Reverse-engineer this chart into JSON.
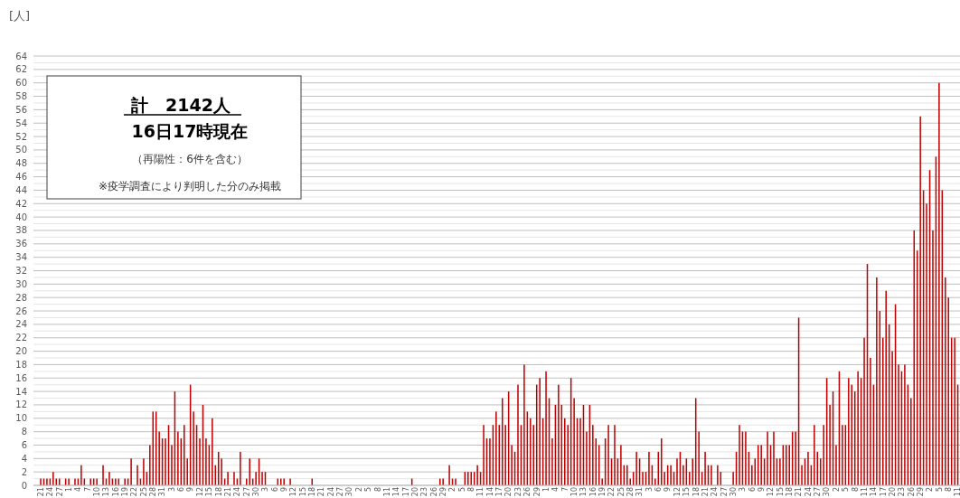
{
  "chart_data": {
    "type": "bar",
    "ylabel": "[人]",
    "categories": [
      "21",
      null,
      null,
      "24",
      null,
      null,
      "27",
      null,
      null,
      "1",
      null,
      null,
      "4",
      null,
      null,
      "7",
      null,
      null,
      "10",
      null,
      null,
      "13",
      null,
      null,
      "16",
      null,
      null,
      "19",
      null,
      null,
      "22",
      null,
      null,
      "25",
      null,
      null,
      "28",
      null,
      null,
      "31",
      null,
      null,
      "3",
      null,
      null,
      "6",
      null,
      null,
      "9",
      null,
      null,
      "12",
      null,
      null,
      "15",
      null,
      null,
      "18",
      null,
      null,
      "21",
      null,
      null,
      "24",
      null,
      null,
      "27",
      null,
      null,
      "30",
      null,
      null,
      "3",
      null,
      null,
      "6",
      null,
      null,
      "9",
      null,
      null,
      "12",
      null,
      null,
      "15",
      null,
      null,
      "18",
      null,
      null,
      "21",
      null,
      null,
      "24",
      null,
      null,
      "27",
      null,
      null,
      "30",
      null,
      null,
      "2",
      null,
      null,
      "5",
      null,
      null,
      "8",
      null,
      null,
      "11",
      null,
      null,
      "14",
      null,
      null,
      "17",
      null,
      null,
      "20",
      null,
      null,
      "23",
      null,
      null,
      "26",
      null,
      null,
      "29",
      null,
      null,
      "2",
      null,
      null,
      "5",
      null,
      null,
      "8",
      null,
      null,
      "11",
      null,
      null,
      "14",
      null,
      null,
      "17",
      null,
      null,
      "20",
      null,
      null,
      "23",
      null,
      null,
      "26",
      null,
      null,
      "29",
      null,
      null,
      "1",
      null,
      null,
      "4",
      null,
      null,
      "7",
      null,
      null,
      "10",
      null,
      null,
      "13",
      null,
      null,
      "16",
      null,
      null,
      "19",
      null,
      null,
      "22",
      null,
      null,
      "25",
      null,
      null,
      "28",
      null,
      null,
      "31",
      null,
      null,
      "3",
      null,
      null,
      "6",
      null,
      null,
      "9",
      null,
      null,
      "12",
      null,
      null,
      "15",
      null,
      null,
      "18",
      null,
      null,
      "21",
      null,
      null,
      "24",
      null,
      null,
      "27",
      null,
      null,
      "30",
      null,
      null,
      "3",
      null,
      null,
      "6",
      null,
      null,
      "9",
      null,
      null,
      "12",
      null,
      null,
      "15",
      null,
      null,
      "18",
      null,
      null,
      "21",
      null,
      null,
      "24",
      null,
      null,
      "27",
      null,
      null,
      "30",
      null,
      null,
      "2",
      null,
      null,
      "5",
      null,
      null,
      "8",
      null,
      null,
      "11",
      null,
      null,
      "14",
      null,
      null,
      "17",
      null,
      null,
      "20",
      null,
      null,
      "23",
      null,
      null,
      "26",
      null,
      null,
      "29",
      null,
      null,
      "2",
      null,
      null,
      "5",
      null,
      null,
      "8",
      null,
      null,
      "11"
    ],
    "values": [
      1,
      1,
      1,
      1,
      2,
      1,
      1,
      0,
      1,
      1,
      0,
      1,
      1,
      3,
      1,
      0,
      1,
      1,
      1,
      0,
      3,
      1,
      2,
      1,
      1,
      1,
      0,
      1,
      1,
      4,
      0,
      3,
      1,
      4,
      2,
      6,
      11,
      11,
      8,
      7,
      7,
      9,
      6,
      14,
      8,
      7,
      9,
      4,
      15,
      11,
      9,
      7,
      12,
      7,
      6,
      10,
      3,
      5,
      4,
      1,
      2,
      0,
      2,
      1,
      5,
      0,
      1,
      4,
      1,
      2,
      4,
      2,
      2,
      0,
      0,
      0,
      1,
      1,
      1,
      0,
      1,
      0,
      0,
      0,
      0,
      0,
      0,
      1,
      0,
      0,
      0,
      0,
      0,
      0,
      0,
      0,
      0,
      0,
      0,
      0,
      0,
      0,
      0,
      0,
      0,
      0,
      0,
      0,
      0,
      0,
      0,
      0,
      0,
      0,
      0,
      0,
      0,
      0,
      0,
      1,
      0,
      0,
      0,
      0,
      0,
      0,
      0,
      0,
      1,
      1,
      0,
      3,
      1,
      1,
      0,
      0,
      2,
      2,
      2,
      2,
      3,
      2,
      9,
      7,
      7,
      9,
      11,
      9,
      13,
      9,
      14,
      6,
      5,
      15,
      9,
      18,
      11,
      10,
      9,
      15,
      16,
      10,
      17,
      13,
      7,
      12,
      15,
      12,
      10,
      9,
      16,
      13,
      10,
      10,
      12,
      8,
      12,
      9,
      7,
      6,
      1,
      7,
      9,
      4,
      9,
      4,
      6,
      3,
      3,
      1,
      2,
      5,
      4,
      2,
      2,
      5,
      3,
      1,
      5,
      7,
      2,
      3,
      3,
      2,
      4,
      5,
      3,
      4,
      2,
      4,
      13,
      8,
      2,
      5,
      3,
      3,
      0,
      3,
      2,
      0,
      0,
      0,
      2,
      5,
      9,
      8,
      8,
      5,
      3,
      4,
      6,
      6,
      4,
      8,
      6,
      8,
      4,
      4,
      6,
      6,
      6,
      8,
      8,
      25,
      3,
      4,
      5,
      3,
      9,
      5,
      4,
      9,
      16,
      12,
      14,
      6,
      17,
      9,
      9,
      16,
      15,
      14,
      17,
      16,
      22,
      33,
      19,
      15,
      31,
      26,
      22,
      29,
      24,
      20,
      27,
      18,
      17,
      18,
      15,
      13,
      38,
      35,
      55,
      44,
      42,
      47,
      38,
      49,
      60,
      44,
      31,
      28,
      22,
      22,
      15
    ],
    "color": "#c00000",
    "ylim": [
      0,
      64
    ],
    "yticks": [
      0,
      {
        "value": 1,
        "label": null
      },
      2,
      {
        "value": 3,
        "label": null
      },
      4,
      {
        "value": 5,
        "label": null
      },
      6,
      {
        "value": 7,
        "label": null
      },
      8,
      {
        "value": 9,
        "label": null
      },
      10,
      {
        "value": 11,
        "label": null
      },
      12,
      {
        "value": 13,
        "label": null
      },
      14,
      {
        "value": 15,
        "label": null
      },
      16,
      {
        "value": 17,
        "label": null
      },
      18,
      {
        "value": 19,
        "label": null
      },
      20,
      {
        "value": 21,
        "label": null
      },
      22,
      {
        "value": 23,
        "label": null
      },
      24,
      {
        "value": 25,
        "label": null
      },
      26,
      {
        "value": 27,
        "label": null
      },
      28,
      {
        "value": 29,
        "label": null
      },
      30,
      {
        "value": 31,
        "label": null
      },
      32,
      {
        "value": 33,
        "label": null
      },
      34,
      {
        "value": 35,
        "label": null
      },
      36,
      {
        "value": 37,
        "label": null
      },
      38,
      {
        "value": 39,
        "label": null
      },
      40,
      {
        "value": 41,
        "label": null
      },
      42,
      {
        "value": 43,
        "label": null
      },
      44,
      {
        "value": 45,
        "label": null
      },
      46,
      {
        "value": 47,
        "label": null
      },
      48,
      {
        "value": 49,
        "label": null
      },
      50,
      {
        "value": 51,
        "label": null
      },
      52,
      {
        "value": 53,
        "label": null
      },
      54,
      {
        "value": 55,
        "label": null
      },
      56,
      {
        "value": 57,
        "label": null
      },
      58,
      {
        "value": 59,
        "label": null
      },
      60,
      {
        "value": 61,
        "label": null
      },
      62,
      {
        "value": 63,
        "label": null
      },
      64
    ],
    "grid": "y",
    "annotations": [
      "計　2142人",
      "16日17時現在",
      "（再陽性：6件を含む）",
      "※疫学調査により判明した分のみ掲載"
    ]
  }
}
